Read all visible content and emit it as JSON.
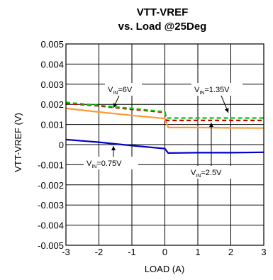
{
  "chart_data": {
    "type": "line",
    "title": [
      "VTT-VREF",
      "vs. Load @25Deg"
    ],
    "xlabel": "LOAD (A)",
    "ylabel": "VTT-VREF (V)",
    "xlim": [
      -3,
      3
    ],
    "ylim": [
      -0.005,
      0.005
    ],
    "x_ticks": [
      "-3",
      "-2",
      "-1",
      "0",
      "1",
      "2",
      "3"
    ],
    "y_ticks": [
      "0.005",
      "0.004",
      "0.003",
      "0.002",
      "0.001",
      "0",
      "-0.001",
      "-0.002",
      "-0.003",
      "-0.004",
      "-0.005"
    ],
    "grid": true,
    "series": [
      {
        "name": "VIN=6V",
        "color": "#cc0000",
        "dash": "dashed",
        "points": [
          [
            -3,
            0.00205
          ],
          [
            -2,
            0.00192
          ],
          [
            -1,
            0.00175
          ],
          [
            0,
            0.0016
          ],
          [
            0.05,
            0.0012
          ],
          [
            1,
            0.0012
          ],
          [
            2,
            0.0012
          ],
          [
            3,
            0.0012
          ]
        ]
      },
      {
        "name": "VIN=1.35V",
        "color": "#00cc00",
        "dash": "dashed",
        "points": [
          [
            -3,
            0.0021
          ],
          [
            -2,
            0.00195
          ],
          [
            -1,
            0.0018
          ],
          [
            0,
            0.00163
          ],
          [
            0.05,
            0.00132
          ],
          [
            1,
            0.00132
          ],
          [
            2,
            0.00132
          ],
          [
            3,
            0.00132
          ]
        ]
      },
      {
        "name": "VIN=2.5V",
        "color": "#ff9933",
        "dash": "solid",
        "points": [
          [
            -3,
            0.0018
          ],
          [
            -2,
            0.00162
          ],
          [
            -1,
            0.00145
          ],
          [
            0,
            0.0013
          ],
          [
            0.1,
            0.00085
          ],
          [
            1,
            0.00085
          ],
          [
            2,
            0.00083
          ],
          [
            3,
            0.00082
          ]
        ]
      },
      {
        "name": "VIN=0.75V",
        "color": "#0000cc",
        "dash": "solid",
        "points": [
          [
            -3,
            0.00025
          ],
          [
            -2,
            0.00012
          ],
          [
            -1,
            -5e-05
          ],
          [
            0,
            -0.0002
          ],
          [
            0.1,
            -0.00042
          ],
          [
            1,
            -0.0004
          ],
          [
            2,
            -0.0004
          ],
          [
            3,
            -0.00038
          ]
        ]
      }
    ],
    "annotations": [
      {
        "main": "V",
        "sub": "IN",
        "rest": "=6V"
      },
      {
        "main": "V",
        "sub": "IN",
        "rest": "=1.35V"
      },
      {
        "main": "V",
        "sub": "IN",
        "rest": "=0.75V"
      },
      {
        "main": "V",
        "sub": "IN",
        "rest": "=2.5V"
      }
    ]
  }
}
